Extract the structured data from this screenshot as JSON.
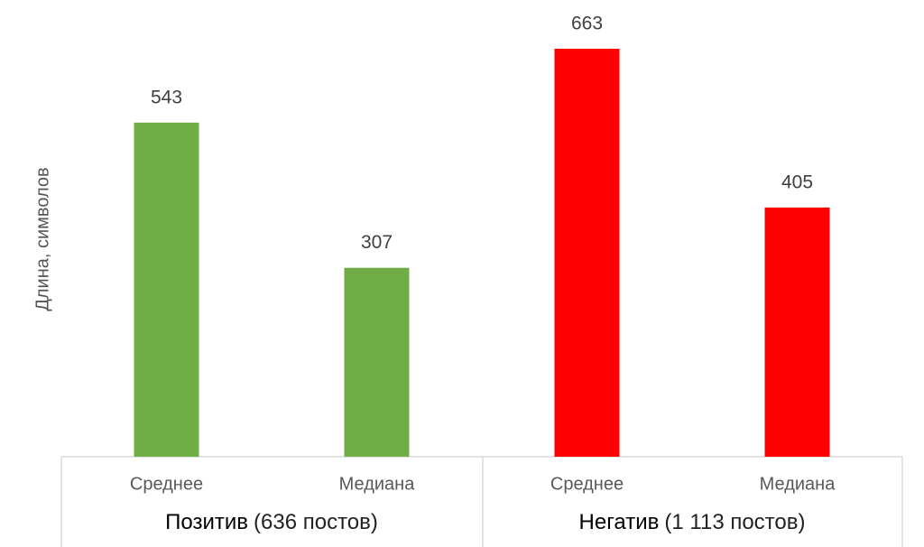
{
  "chart_data": {
    "type": "bar",
    "y_label": "Длина, символов",
    "groups": [
      {
        "name": "Позитив",
        "detail": "(636 постов)",
        "color": "#70ad47",
        "categories": [
          "Среднее",
          "Медиана"
        ],
        "values": [
          543,
          307
        ]
      },
      {
        "name": "Негатив",
        "detail": "(1 113 постов)",
        "color": "#ff0000",
        "categories": [
          "Среднее",
          "Медиана"
        ],
        "values": [
          663,
          405
        ]
      }
    ]
  }
}
